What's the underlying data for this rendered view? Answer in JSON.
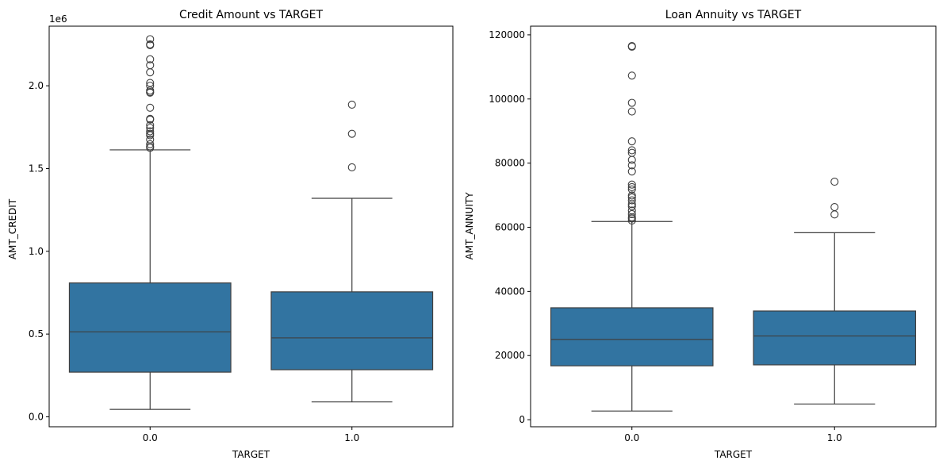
{
  "chart_data": [
    {
      "type": "box",
      "title": "Credit Amount vs TARGET",
      "xlabel": "TARGET",
      "ylabel": "AMT_CREDIT",
      "offset_text": "1e6",
      "categories": [
        "0.0",
        "1.0"
      ],
      "ylim": [
        -60000,
        2360000
      ],
      "yticks": [
        0,
        500000,
        1000000,
        1500000,
        2000000
      ],
      "ytick_labels": [
        "0.0",
        "0.5",
        "1.0",
        "1.5",
        "2.0"
      ],
      "box_color": "#3274a1",
      "boxes": [
        {
          "category": "0.0",
          "whisker_low": 45000,
          "q1": 270000,
          "median": 513000,
          "q3": 808650,
          "whisker_high": 1612800,
          "outliers": [
            2281500,
            2250000,
            2245500,
            2160000,
            2124000,
            2081250,
            2017000,
            2000000,
            1971000,
            1962000,
            1958500,
            1867500,
            1800000,
            1795500,
            1762000,
            1746000,
            1725000,
            1710000,
            1701000,
            1675000,
            1647000,
            1633500,
            1625000
          ]
        },
        {
          "category": "1.0",
          "whisker_low": 90000,
          "q1": 284400,
          "median": 477000,
          "q3": 755190,
          "whisker_high": 1320000,
          "outliers": [
            1886000,
            1710000,
            1507500
          ]
        }
      ]
    },
    {
      "type": "box",
      "title": "Loan Annuity vs TARGET",
      "xlabel": "TARGET",
      "ylabel": "AMT_ANNUITY",
      "categories": [
        "0.0",
        "1.0"
      ],
      "ylim": [
        -2200,
        122700
      ],
      "yticks": [
        0,
        20000,
        40000,
        60000,
        80000,
        100000,
        120000
      ],
      "ytick_labels": [
        "0",
        "20000",
        "40000",
        "60000",
        "80000",
        "100000",
        "120000"
      ],
      "box_color": "#3274a1",
      "boxes": [
        {
          "category": "0.0",
          "whisker_low": 2700,
          "q1": 16800,
          "median": 25000,
          "q3": 34900,
          "whisker_high": 61800,
          "outliers": [
            116500,
            116300,
            107300,
            98800,
            96100,
            86800,
            84000,
            83200,
            81000,
            79300,
            77400,
            73300,
            72500,
            71800,
            69900,
            69300,
            68400,
            67200,
            66500,
            65200,
            64100,
            63100,
            62700,
            62100
          ]
        },
        {
          "category": "1.0",
          "whisker_low": 4900,
          "q1": 17100,
          "median": 26100,
          "q3": 33900,
          "whisker_high": 58300,
          "outliers": [
            74200,
            66300,
            64000
          ]
        }
      ]
    }
  ]
}
